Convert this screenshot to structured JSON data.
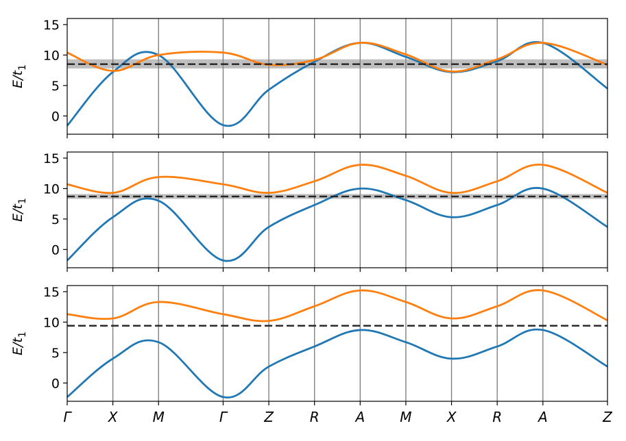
{
  "chart_data": {
    "type": "line",
    "ylabel": "E/t",
    "ylabel_subscript": "1",
    "ylim": [
      -3,
      16
    ],
    "yticks": [
      0,
      5,
      10,
      15
    ],
    "x_labels": [
      "Γ",
      "X",
      "M",
      "Γ",
      "Z",
      "R",
      "A",
      "M",
      "X",
      "R",
      "A",
      "Z"
    ],
    "x_positions": [
      0,
      1,
      2,
      3.4142,
      4.4142,
      5.4142,
      6.4142,
      7.4142,
      8.4142,
      9.4142,
      10.4142,
      11.8284
    ],
    "grid": "vertical lines at high-symmetry points",
    "colors": {
      "band1": "#1f77b4",
      "band2": "#ff7f0e",
      "fermi": "#222222",
      "shade": "#bfbfbf"
    },
    "panels": [
      {
        "fermi_level": 8.5,
        "shade_band": [
          7.8,
          9.3
        ],
        "series": [
          {
            "values": [
              -1.6,
              7.2,
              10.0,
              -1.5,
              4.3,
              8.9,
              12.0,
              9.7,
              7.2,
              9.0,
              12.0,
              4.5
            ]
          },
          {
            "values": [
              10.4,
              7.4,
              10.0,
              10.4,
              8.4,
              9.2,
              12.0,
              10.1,
              7.3,
              9.3,
              12.0,
              8.4
            ]
          }
        ]
      },
      {
        "fermi_level": 8.7,
        "shade_band": [
          8.3,
          9.1
        ],
        "series": [
          {
            "values": [
              -1.8,
              5.3,
              8.0,
              -1.8,
              3.7,
              7.3,
              10.0,
              8.1,
              5.3,
              7.3,
              10.0,
              3.7
            ]
          },
          {
            "values": [
              10.7,
              9.3,
              11.9,
              10.7,
              9.3,
              11.2,
              13.9,
              12.1,
              9.3,
              11.2,
              13.9,
              9.3
            ]
          }
        ]
      },
      {
        "fermi_level": 9.4,
        "shade_band": null,
        "series": [
          {
            "values": [
              -2.3,
              4.0,
              6.7,
              -2.3,
              2.7,
              6.0,
              8.7,
              6.7,
              4.0,
              6.0,
              8.7,
              2.7
            ]
          },
          {
            "values": [
              11.3,
              10.6,
              13.3,
              11.3,
              10.2,
              12.6,
              15.2,
              13.3,
              10.6,
              12.6,
              15.2,
              10.3
            ]
          }
        ]
      }
    ]
  }
}
